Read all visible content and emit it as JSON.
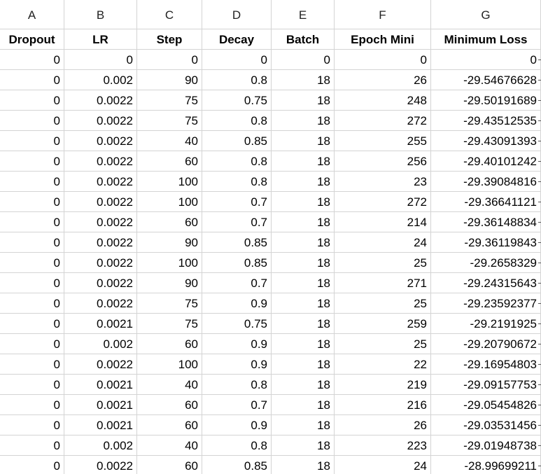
{
  "columns": [
    "A",
    "B",
    "C",
    "D",
    "E",
    "F",
    "G"
  ],
  "headers": [
    "Dropout",
    "LR",
    "Step",
    "Decay",
    "Batch",
    "Epoch Mini",
    "Minimum Loss"
  ],
  "rows": [
    [
      "0",
      "0",
      "0",
      "0",
      "0",
      "0",
      "0"
    ],
    [
      "0",
      "0.002",
      "90",
      "0.8",
      "18",
      "26",
      "-29.54676628"
    ],
    [
      "0",
      "0.0022",
      "75",
      "0.75",
      "18",
      "248",
      "-29.50191689"
    ],
    [
      "0",
      "0.0022",
      "75",
      "0.8",
      "18",
      "272",
      "-29.43512535"
    ],
    [
      "0",
      "0.0022",
      "40",
      "0.85",
      "18",
      "255",
      "-29.43091393"
    ],
    [
      "0",
      "0.0022",
      "60",
      "0.8",
      "18",
      "256",
      "-29.40101242"
    ],
    [
      "0",
      "0.0022",
      "100",
      "0.8",
      "18",
      "23",
      "-29.39084816"
    ],
    [
      "0",
      "0.0022",
      "100",
      "0.7",
      "18",
      "272",
      "-29.36641121"
    ],
    [
      "0",
      "0.0022",
      "60",
      "0.7",
      "18",
      "214",
      "-29.36148834"
    ],
    [
      "0",
      "0.0022",
      "90",
      "0.85",
      "18",
      "24",
      "-29.36119843"
    ],
    [
      "0",
      "0.0022",
      "100",
      "0.85",
      "18",
      "25",
      "-29.2658329"
    ],
    [
      "0",
      "0.0022",
      "90",
      "0.7",
      "18",
      "271",
      "-29.24315643"
    ],
    [
      "0",
      "0.0022",
      "75",
      "0.9",
      "18",
      "25",
      "-29.23592377"
    ],
    [
      "0",
      "0.0021",
      "75",
      "0.75",
      "18",
      "259",
      "-29.2191925"
    ],
    [
      "0",
      "0.002",
      "60",
      "0.9",
      "18",
      "25",
      "-29.20790672"
    ],
    [
      "0",
      "0.0022",
      "100",
      "0.9",
      "18",
      "22",
      "-29.16954803"
    ],
    [
      "0",
      "0.0021",
      "40",
      "0.8",
      "18",
      "219",
      "-29.09157753"
    ],
    [
      "0",
      "0.0021",
      "60",
      "0.7",
      "18",
      "216",
      "-29.05454826"
    ],
    [
      "0",
      "0.0021",
      "60",
      "0.9",
      "18",
      "26",
      "-29.03531456"
    ],
    [
      "0",
      "0.002",
      "40",
      "0.8",
      "18",
      "223",
      "-29.01948738"
    ],
    [
      "0",
      "0.0022",
      "60",
      "0.85",
      "18",
      "24",
      "-28.99699211"
    ]
  ]
}
